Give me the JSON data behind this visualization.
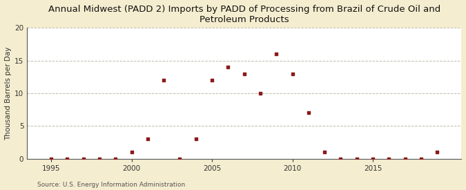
{
  "title": "Annual Midwest (PADD 2) Imports by PADD of Processing from Brazil of Crude Oil and\nPetroleum Products",
  "ylabel": "Thousand Barrels per Day",
  "source": "Source: U.S. Energy Information Administration",
  "background_color": "#f5edcf",
  "plot_background_color": "#ffffff",
  "marker_color": "#8b1a1a",
  "years": [
    1995,
    1996,
    1997,
    1998,
    1999,
    2000,
    2001,
    2002,
    2003,
    2004,
    2005,
    2006,
    2007,
    2008,
    2009,
    2010,
    2011,
    2012,
    2013,
    2014,
    2015,
    2016,
    2017,
    2018,
    2019
  ],
  "values": [
    0,
    0,
    0,
    0,
    0,
    1,
    3,
    12,
    0,
    3,
    12,
    14,
    13,
    10,
    16,
    13,
    7,
    1,
    0,
    0,
    0,
    0,
    0,
    0,
    1
  ],
  "ylim": [
    0,
    20
  ],
  "yticks": [
    0,
    5,
    10,
    15,
    20
  ],
  "xticks": [
    1995,
    2000,
    2005,
    2010,
    2015
  ],
  "grid_color": "#bbbbaa",
  "title_fontsize": 9.5,
  "axis_label_fontsize": 7.5,
  "tick_fontsize": 7.5,
  "source_fontsize": 6.5
}
